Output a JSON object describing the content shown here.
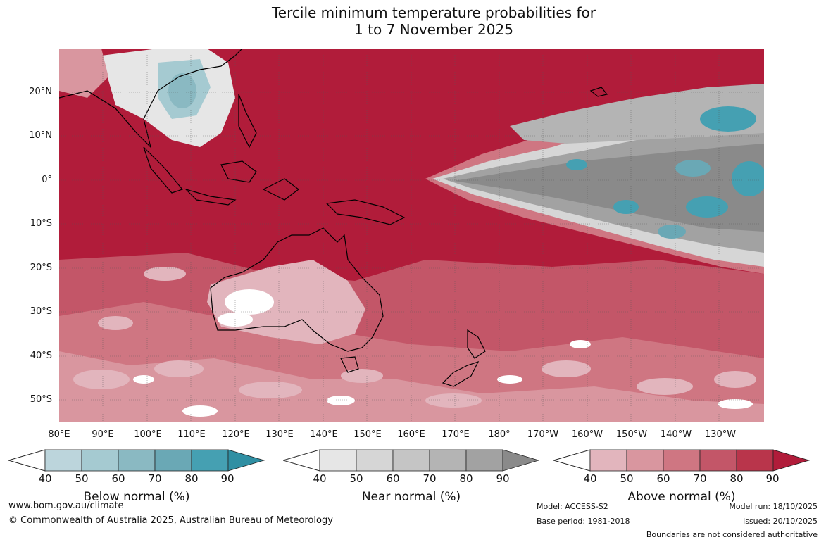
{
  "title_line1": "Tercile minimum temperature probabilities for",
  "title_line2": "1 to 7 November 2025",
  "lat_labels": [
    "20°N",
    "10°N",
    "0°",
    "10°S",
    "20°S",
    "30°S",
    "40°S",
    "50°S"
  ],
  "lon_labels": [
    "80°E",
    "90°E",
    "100°E",
    "110°E",
    "120°E",
    "130°E",
    "140°E",
    "150°E",
    "160°E",
    "170°E",
    "180°",
    "170°W",
    "160°W",
    "150°W",
    "140°W",
    "130°W"
  ],
  "colorbars": [
    {
      "label": "Below normal (%)",
      "ticks": [
        "40",
        "50",
        "60",
        "70",
        "80",
        "90"
      ],
      "colors": [
        "#bcd5dc",
        "#a5cad1",
        "#8ab9c2",
        "#6aa8b5",
        "#45a0b2",
        "#2f8fa3"
      ]
    },
    {
      "label": "Near normal (%)",
      "ticks": [
        "40",
        "50",
        "60",
        "70",
        "80",
        "90"
      ],
      "colors": [
        "#e6e6e6",
        "#d6d6d6",
        "#c5c5c5",
        "#b4b4b4",
        "#a2a2a2",
        "#8a8a8a"
      ]
    },
    {
      "label": "Above normal (%)",
      "ticks": [
        "40",
        "50",
        "60",
        "70",
        "80",
        "90"
      ],
      "colors": [
        "#e2b5bd",
        "#d9969f",
        "#cf7682",
        "#c35668",
        "#b9354b",
        "#b11c3a"
      ]
    }
  ],
  "footer": {
    "website": "www.bom.gov.au/climate",
    "copyright": "© Commonwealth of Australia 2025, Australian Bureau of Meteorology",
    "model": "Model: ACCESS-S2",
    "base_period": "Base period: 1981-2018",
    "model_run": "Model run: 18/10/2025",
    "issued": "Issued: 20/10/2025",
    "disclaimer": "Boundaries are not considered authoritative"
  }
}
